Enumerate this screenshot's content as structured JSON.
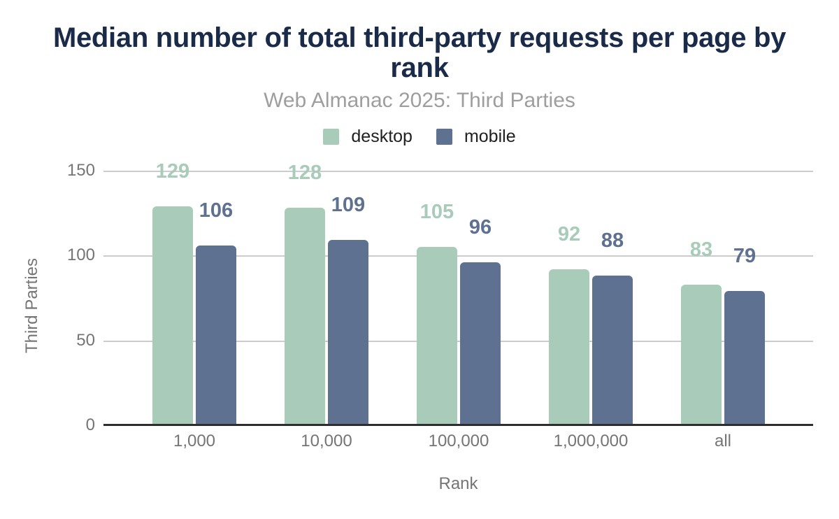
{
  "chart_data": {
    "type": "bar",
    "title": "Median number of total third-party requests per page by rank",
    "subtitle": "Web Almanac 2025: Third Parties",
    "categories": [
      "1,000",
      "10,000",
      "100,000",
      "1,000,000",
      "all"
    ],
    "series": [
      {
        "name": "desktop",
        "color": "#a8cbba",
        "values": [
          129,
          128,
          105,
          92,
          83
        ]
      },
      {
        "name": "mobile",
        "color": "#5e7190",
        "values": [
          106,
          109,
          96,
          88,
          79
        ]
      }
    ],
    "xlabel": "Rank",
    "ylabel": "Third Parties",
    "y_ticks": [
      0,
      50,
      100,
      150
    ],
    "ylim": [
      0,
      150
    ],
    "grid": true,
    "legend_position": "top",
    "data_labels": true
  },
  "style": {
    "background": "#ffffff",
    "title_color": "#1a2b49",
    "subtitle_color": "#9e9e9e",
    "legend_text_color": "#212121",
    "axis_text_color": "#757575",
    "gridline_color": "#cccccc",
    "baseline_color": "#2e2e2e"
  }
}
